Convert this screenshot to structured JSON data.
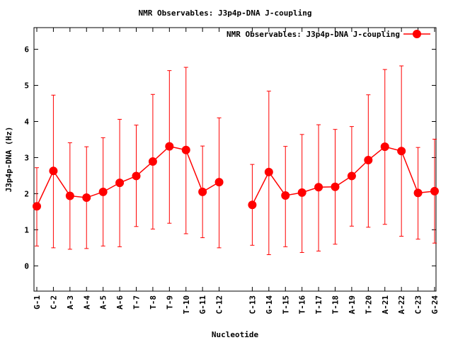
{
  "colors": {
    "series": "#ff0000",
    "axis": "#000000",
    "background": "#ffffff"
  },
  "chart_data": {
    "type": "line",
    "title": "NMR Observables: J3p4p-DNA J-coupling",
    "xlabel": "Nucleotide",
    "ylabel": "J3p4p-DNA (Hz)",
    "ylim": [
      -0.7,
      6.6
    ],
    "yticks": [
      0,
      1,
      2,
      3,
      4,
      5,
      6
    ],
    "grid": false,
    "legend_position": "top-right",
    "error_bars": true,
    "categories": [
      "G-1",
      "C-2",
      "A-3",
      "A-4",
      "A-5",
      "A-6",
      "T-7",
      "T-8",
      "T-9",
      "T-10",
      "G-11",
      "C-12",
      "C-13",
      "G-14",
      "T-15",
      "T-16",
      "T-17",
      "T-18",
      "A-19",
      "T-20",
      "A-21",
      "A-22",
      "C-23",
      "G-24"
    ],
    "series": [
      {
        "name": "NMR Observables: J3p4p-DNA J-coupling",
        "segments": [
          {
            "categories": [
              "G-1",
              "C-2",
              "A-3",
              "A-4",
              "A-5",
              "A-6",
              "T-7",
              "T-8",
              "T-9",
              "T-10",
              "G-11",
              "C-12"
            ],
            "values": [
              1.65,
              2.63,
              1.94,
              1.89,
              2.05,
              2.3,
              2.49,
              2.89,
              3.31,
              3.21,
              2.05,
              2.32
            ],
            "err_low": [
              0.55,
              0.5,
              0.46,
              0.48,
              0.55,
              0.53,
              1.09,
              1.02,
              1.18,
              0.89,
              0.78,
              0.5
            ],
            "err_high": [
              2.72,
              4.73,
              3.41,
              3.3,
              3.55,
              4.06,
              3.9,
              4.75,
              5.41,
              5.5,
              3.32,
              4.1
            ]
          },
          {
            "categories": [
              "C-13",
              "G-14",
              "T-15",
              "T-16",
              "T-17",
              "T-18",
              "A-19",
              "T-20",
              "A-21",
              "A-22",
              "C-23",
              "G-24"
            ],
            "values": [
              1.69,
              2.6,
              1.95,
              2.03,
              2.18,
              2.19,
              2.49,
              2.93,
              3.3,
              3.18,
              2.02,
              2.07
            ],
            "err_low": [
              0.57,
              0.31,
              0.53,
              0.37,
              0.41,
              0.6,
              1.1,
              1.07,
              1.15,
              0.82,
              0.74,
              0.63
            ],
            "err_high": [
              2.81,
              4.84,
              3.31,
              3.64,
              3.91,
              3.78,
              3.86,
              4.74,
              5.44,
              5.54,
              3.28,
              3.51
            ]
          }
        ]
      }
    ]
  }
}
